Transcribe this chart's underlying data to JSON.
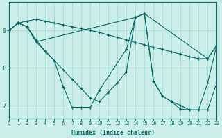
{
  "xlabel": "Humidex (Indice chaleur)",
  "bg_color": "#cceee8",
  "grid_color": "#aaddda",
  "line_color": "#006666",
  "xlim": [
    0,
    23
  ],
  "ylim": [
    6.65,
    9.75
  ],
  "xticks": [
    0,
    1,
    2,
    3,
    4,
    5,
    6,
    7,
    8,
    9,
    10,
    11,
    12,
    13,
    14,
    15,
    16,
    17,
    18,
    19,
    20,
    21,
    22,
    23
  ],
  "yticks": [
    7,
    8,
    9
  ],
  "series": [
    {
      "x": [
        0,
        1,
        2,
        3,
        4,
        5,
        6,
        7,
        8,
        9,
        10,
        11,
        12,
        13,
        14,
        15,
        16,
        17,
        18,
        19,
        20,
        21,
        22,
        23
      ],
      "y": [
        9.0,
        9.2,
        9.25,
        9.3,
        9.25,
        9.2,
        9.15,
        9.1,
        9.05,
        9.0,
        8.95,
        8.88,
        8.82,
        8.75,
        8.68,
        8.62,
        8.55,
        8.5,
        8.43,
        8.37,
        8.3,
        8.25,
        8.25,
        8.6
      ]
    },
    {
      "x": [
        0,
        1,
        2,
        3,
        4,
        5,
        6,
        7,
        8,
        9,
        10,
        13,
        14,
        15,
        16,
        17,
        18,
        19,
        20,
        21,
        22,
        23
      ],
      "y": [
        9.0,
        9.2,
        9.1,
        8.75,
        8.45,
        8.2,
        7.5,
        6.95,
        6.95,
        6.95,
        7.4,
        8.5,
        9.35,
        9.45,
        7.65,
        7.25,
        7.1,
        7.0,
        6.88,
        6.88,
        6.88,
        7.6
      ]
    },
    {
      "x": [
        1,
        2,
        3,
        4,
        5,
        6,
        7,
        8,
        9,
        10,
        11,
        12,
        13,
        14,
        15,
        16,
        17,
        18,
        19,
        20,
        21,
        22,
        23
      ],
      "y": [
        9.2,
        9.1,
        8.7,
        8.45,
        8.2,
        7.95,
        7.7,
        7.45,
        7.2,
        7.1,
        7.35,
        7.6,
        7.9,
        9.35,
        9.45,
        7.65,
        7.25,
        7.1,
        6.9,
        6.88,
        6.88,
        7.6,
        8.6
      ]
    },
    {
      "x": [
        0,
        1,
        2,
        3,
        14,
        15,
        22,
        23
      ],
      "y": [
        9.0,
        9.2,
        9.1,
        8.7,
        9.35,
        9.45,
        8.25,
        8.6
      ]
    }
  ]
}
